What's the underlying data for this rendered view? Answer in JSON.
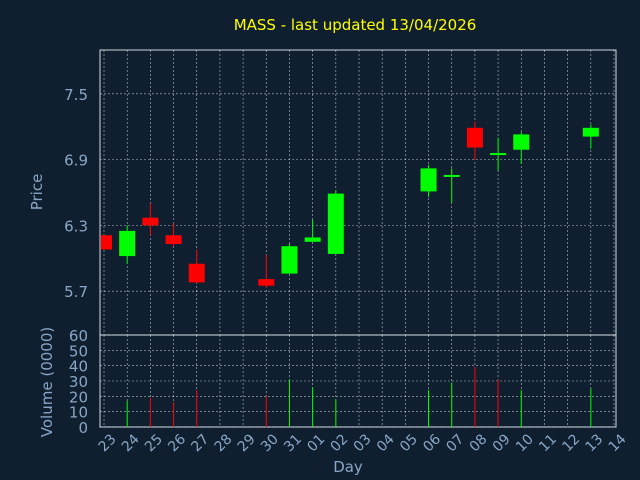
{
  "chart_data": {
    "type": "candlestick",
    "title": "MASS - last updated 13/04/2026",
    "xlabel": "Day",
    "ylabel": "Price",
    "volume_label": "Volume (0000)",
    "grid": true,
    "x_ticks": [
      "23",
      "24",
      "25",
      "26",
      "27",
      "28",
      "29",
      "30",
      "31",
      "01",
      "02",
      "03",
      "04",
      "05",
      "06",
      "07",
      "08",
      "09",
      "10",
      "11",
      "12",
      "13",
      "14"
    ],
    "price_ylim": [
      5.3,
      7.9
    ],
    "price_ticks": [
      "5.7",
      "6.3",
      "6.9",
      "7.5"
    ],
    "volume_ylim": [
      0,
      60
    ],
    "volume_ticks": [
      "0",
      "10",
      "20",
      "30",
      "40",
      "50",
      "60"
    ],
    "colors": {
      "background": "#0f1f30",
      "up": "#00ff00",
      "down": "#ff0000",
      "title": "#ffff00",
      "axis_text": "#8aa6c6",
      "grid": "#ffffff",
      "frame": "#cfd8e0"
    },
    "candles": [
      {
        "day": "23",
        "open": 6.21,
        "high": 6.21,
        "low": 6.08,
        "close": 6.08
      },
      {
        "day": "24",
        "open": 6.02,
        "high": 6.3,
        "low": 5.95,
        "close": 6.25
      },
      {
        "day": "25",
        "open": 6.37,
        "high": 6.5,
        "low": 6.21,
        "close": 6.3
      },
      {
        "day": "26",
        "open": 6.21,
        "high": 6.32,
        "low": 6.11,
        "close": 6.13
      },
      {
        "day": "27",
        "open": 5.95,
        "high": 6.08,
        "low": 5.77,
        "close": 5.78
      },
      {
        "day": "30",
        "open": 5.81,
        "high": 6.03,
        "low": 5.73,
        "close": 5.75
      },
      {
        "day": "31",
        "open": 5.86,
        "high": 6.13,
        "low": 5.86,
        "close": 6.11
      },
      {
        "day": "01",
        "open": 6.15,
        "high": 6.35,
        "low": 6.15,
        "close": 6.19
      },
      {
        "day": "02",
        "open": 6.04,
        "high": 6.62,
        "low": 6.04,
        "close": 6.59
      },
      {
        "day": "06",
        "open": 6.61,
        "high": 6.85,
        "low": 6.56,
        "close": 6.82
      },
      {
        "day": "07",
        "open": 6.76,
        "high": 6.82,
        "low": 6.51,
        "close": 6.76
      },
      {
        "day": "08",
        "open": 7.19,
        "high": 7.25,
        "low": 6.9,
        "close": 7.01
      },
      {
        "day": "09",
        "open": 6.96,
        "high": 7.1,
        "low": 6.8,
        "close": 6.96
      },
      {
        "day": "10",
        "open": 6.99,
        "high": 7.15,
        "low": 6.86,
        "close": 7.13
      },
      {
        "day": "13",
        "open": 7.11,
        "high": 7.22,
        "low": 7.0,
        "close": 7.19
      }
    ],
    "volumes": [
      {
        "day": "24",
        "value": 17,
        "color": "up"
      },
      {
        "day": "25",
        "value": 19,
        "color": "down"
      },
      {
        "day": "26",
        "value": 16,
        "color": "down"
      },
      {
        "day": "27",
        "value": 24,
        "color": "down"
      },
      {
        "day": "30",
        "value": 20,
        "color": "down"
      },
      {
        "day": "31",
        "value": 31,
        "color": "up"
      },
      {
        "day": "01",
        "value": 26,
        "color": "up"
      },
      {
        "day": "02",
        "value": 18,
        "color": "up"
      },
      {
        "day": "06",
        "value": 24,
        "color": "up"
      },
      {
        "day": "07",
        "value": 29,
        "color": "up"
      },
      {
        "day": "08",
        "value": 39,
        "color": "down"
      },
      {
        "day": "09",
        "value": 31,
        "color": "down"
      },
      {
        "day": "10",
        "value": 24,
        "color": "up"
      },
      {
        "day": "13",
        "value": 25,
        "color": "up"
      }
    ]
  }
}
